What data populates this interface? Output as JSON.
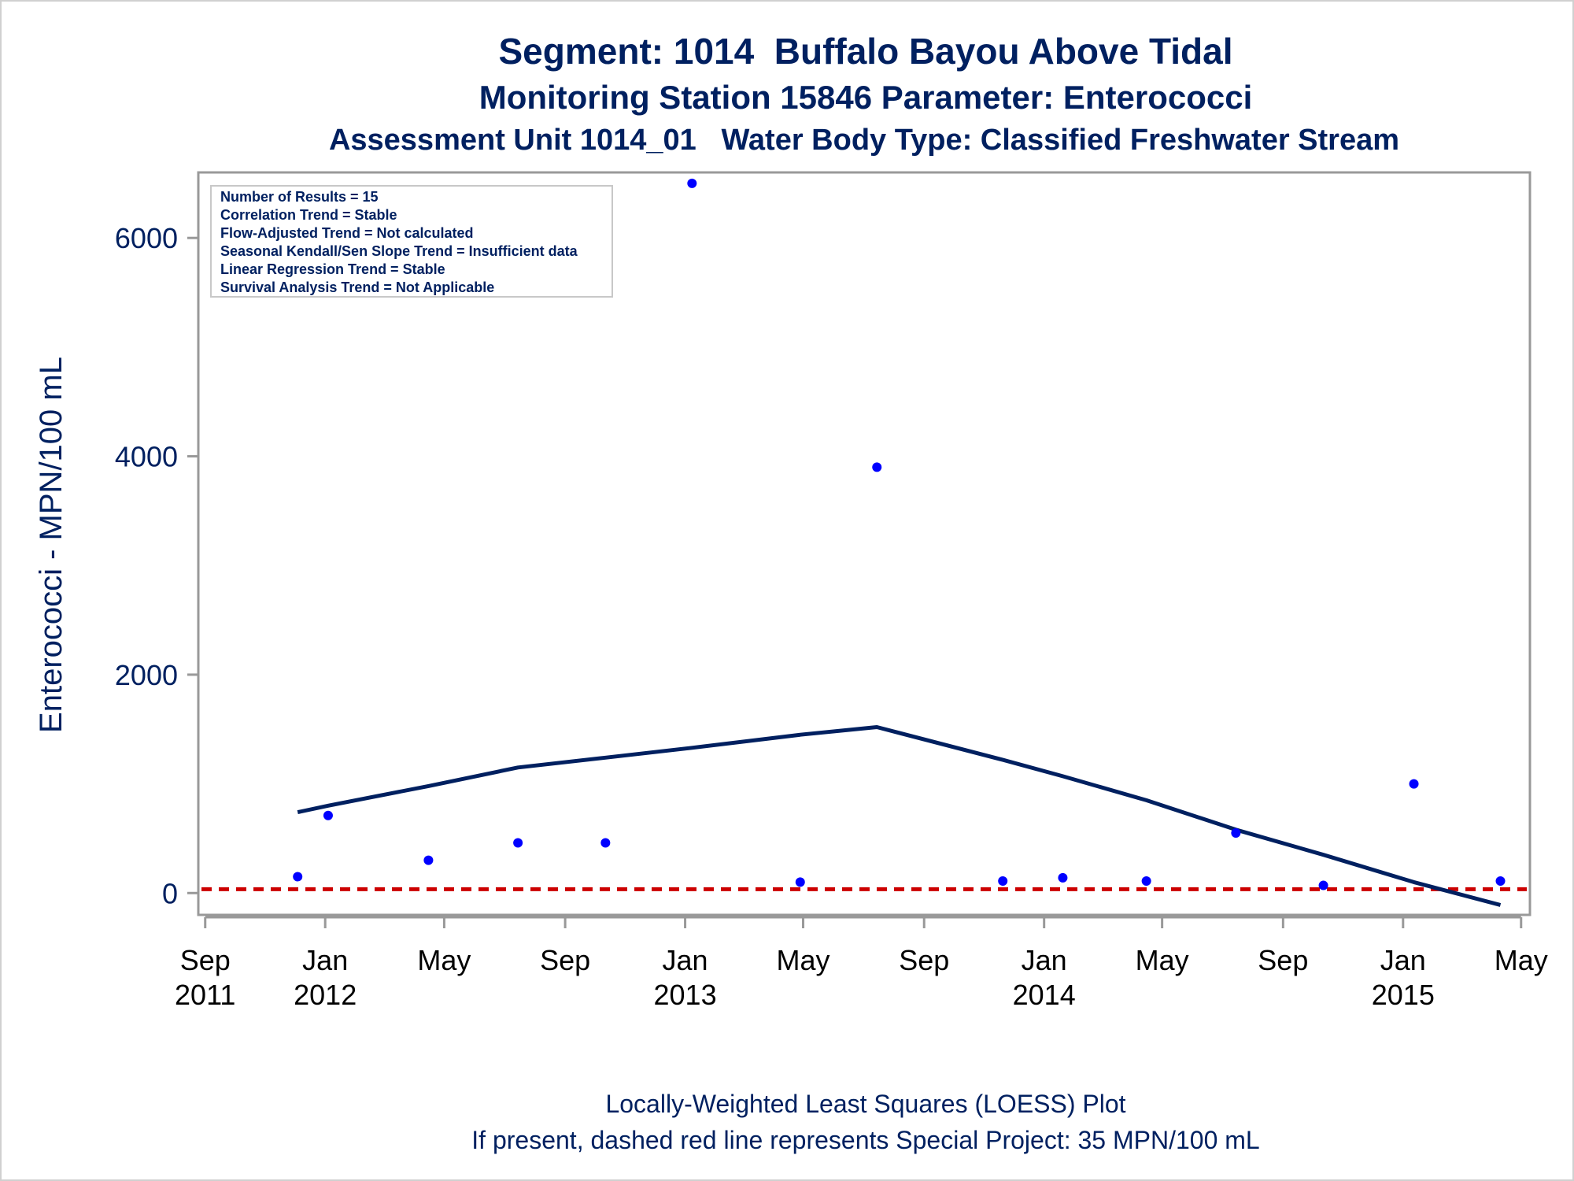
{
  "chart_data": {
    "type": "scatter",
    "title": "Segment: 1014  Buffalo Bayou Above Tidal",
    "subtitle": "Monitoring Station 15846 Parameter: Enterococci",
    "subtitle2": "Assessment Unit 1014_01   Water Body Type: Classified Freshwater Stream",
    "ylabel": "Enterococci - MPN/100 mL",
    "ylim": [
      -200,
      6600
    ],
    "yticks": [
      0,
      2000,
      4000,
      6000
    ],
    "xlim": [
      "2011-08-25",
      "2015-05-10"
    ],
    "xticks": [
      {
        "date": "2011-09-01",
        "month": "Sep",
        "year": "2011"
      },
      {
        "date": "2012-01-01",
        "month": "Jan",
        "year": "2012"
      },
      {
        "date": "2012-05-01",
        "month": "May",
        "year": ""
      },
      {
        "date": "2012-09-01",
        "month": "Sep",
        "year": ""
      },
      {
        "date": "2013-01-01",
        "month": "Jan",
        "year": "2013"
      },
      {
        "date": "2013-05-01",
        "month": "May",
        "year": ""
      },
      {
        "date": "2013-09-01",
        "month": "Sep",
        "year": ""
      },
      {
        "date": "2014-01-01",
        "month": "Jan",
        "year": "2014"
      },
      {
        "date": "2014-05-01",
        "month": "May",
        "year": ""
      },
      {
        "date": "2014-09-01",
        "month": "Sep",
        "year": ""
      },
      {
        "date": "2015-01-01",
        "month": "Jan",
        "year": "2015"
      },
      {
        "date": "2015-05-01",
        "month": "May",
        "year": ""
      }
    ],
    "points": [
      {
        "x": "2011-12-04",
        "y": 150
      },
      {
        "x": "2012-01-04",
        "y": 710
      },
      {
        "x": "2012-04-15",
        "y": 300
      },
      {
        "x": "2012-07-15",
        "y": 460
      },
      {
        "x": "2012-10-12",
        "y": 460
      },
      {
        "x": "2013-01-08",
        "y": 6500
      },
      {
        "x": "2013-04-28",
        "y": 100
      },
      {
        "x": "2013-07-15",
        "y": 3900
      },
      {
        "x": "2013-11-20",
        "y": 110
      },
      {
        "x": "2014-01-20",
        "y": 140
      },
      {
        "x": "2014-04-15",
        "y": 110
      },
      {
        "x": "2014-07-15",
        "y": 550
      },
      {
        "x": "2014-10-12",
        "y": 70
      },
      {
        "x": "2015-01-12",
        "y": 1000
      },
      {
        "x": "2015-04-10",
        "y": 110
      }
    ],
    "loess": [
      {
        "x": "2011-12-04",
        "y": 740
      },
      {
        "x": "2012-01-04",
        "y": 800
      },
      {
        "x": "2012-04-15",
        "y": 980
      },
      {
        "x": "2012-07-15",
        "y": 1150
      },
      {
        "x": "2012-10-12",
        "y": 1240
      },
      {
        "x": "2013-01-08",
        "y": 1330
      },
      {
        "x": "2013-04-28",
        "y": 1450
      },
      {
        "x": "2013-07-15",
        "y": 1520
      },
      {
        "x": "2013-11-20",
        "y": 1220
      },
      {
        "x": "2014-01-20",
        "y": 1070
      },
      {
        "x": "2014-04-15",
        "y": 850
      },
      {
        "x": "2014-07-15",
        "y": 580
      },
      {
        "x": "2014-10-12",
        "y": 350
      },
      {
        "x": "2015-01-12",
        "y": 100
      },
      {
        "x": "2015-04-10",
        "y": -110
      }
    ],
    "reference_line": {
      "y": 35
    },
    "stats": [
      "Number of Results = 15",
      "Correlation Trend = Stable",
      "Flow-Adjusted Trend = Not calculated",
      "Seasonal Kendall/Sen Slope Trend = Insufficient data",
      "Linear Regression Trend = Stable",
      "Survival Analysis Trend = Not Applicable"
    ],
    "footnote1": "Locally-Weighted Least Squares (LOESS) Plot",
    "footnote2": "If present, dashed red line represents Special Project: 35 MPN/100 mL",
    "grid": false,
    "legend": "top-left stats box",
    "colors": {
      "points": "#0000ff",
      "loess": "#002060",
      "reference": "#cc0000",
      "axis": "#999999",
      "text": "#002060"
    }
  }
}
